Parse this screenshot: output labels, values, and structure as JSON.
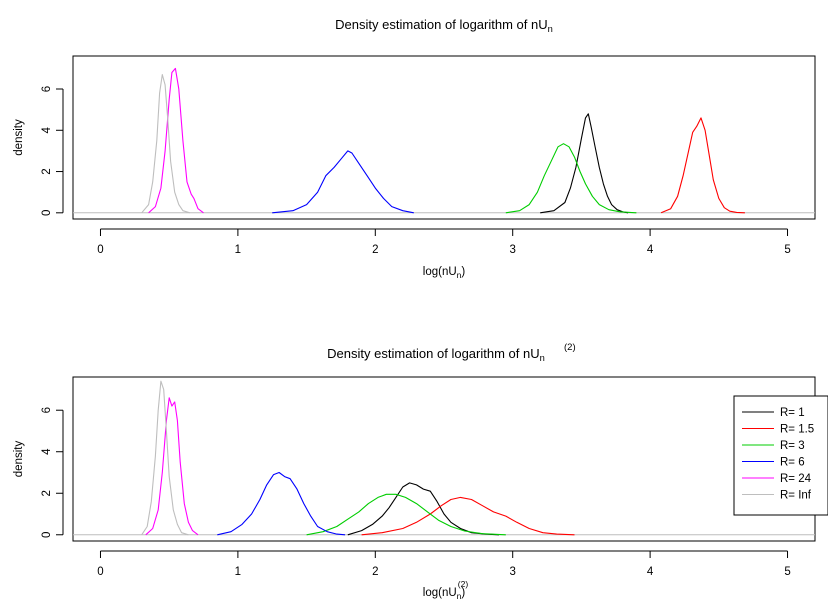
{
  "chart_data": [
    {
      "type": "line",
      "title": {
        "main": "Density estimation of logarithm of nU",
        "sub": "n",
        "sup": ""
      },
      "xlabel": {
        "pre": "log(nU",
        "sub": "n",
        "sup": "",
        "post": ")"
      },
      "ylabel": "density",
      "xlim": [
        -0.2,
        5.2
      ],
      "ylim": [
        -0.3,
        7.6
      ],
      "xticks": [
        "0",
        "1",
        "2",
        "3",
        "4",
        "5"
      ],
      "yticks": [
        "0",
        "2",
        "4",
        "6"
      ],
      "grid": false,
      "legend": false,
      "series": [
        {
          "label": "R= 1",
          "color": "#000000",
          "x": [
            3.2,
            3.3,
            3.38,
            3.42,
            3.46,
            3.5,
            3.53,
            3.55,
            3.57,
            3.6,
            3.63,
            3.66,
            3.69,
            3.72,
            3.76,
            3.8,
            3.84
          ],
          "y": [
            0.0,
            0.1,
            0.5,
            1.2,
            2.2,
            3.6,
            4.6,
            4.8,
            4.2,
            3.2,
            2.2,
            1.4,
            0.8,
            0.4,
            0.15,
            0.05,
            0.0
          ]
        },
        {
          "label": "R= 1.5",
          "color": "#ff0000",
          "x": [
            4.08,
            4.15,
            4.2,
            4.24,
            4.28,
            4.31,
            4.34,
            4.37,
            4.4,
            4.43,
            4.46,
            4.5,
            4.54,
            4.58,
            4.63,
            4.69
          ],
          "y": [
            0.0,
            0.2,
            0.8,
            1.8,
            3.0,
            3.9,
            4.2,
            4.6,
            4.0,
            2.8,
            1.6,
            0.7,
            0.25,
            0.08,
            0.02,
            0.0
          ]
        },
        {
          "label": "R= 3",
          "color": "#00cd00",
          "x": [
            2.95,
            3.05,
            3.12,
            3.18,
            3.23,
            3.28,
            3.33,
            3.37,
            3.41,
            3.45,
            3.49,
            3.53,
            3.58,
            3.63,
            3.7,
            3.78,
            3.9
          ],
          "y": [
            0.0,
            0.1,
            0.4,
            1.0,
            1.8,
            2.5,
            3.2,
            3.35,
            3.2,
            2.7,
            2.0,
            1.4,
            0.8,
            0.4,
            0.15,
            0.05,
            0.0
          ]
        },
        {
          "label": "R= 6",
          "color": "#0000ff",
          "x": [
            1.25,
            1.4,
            1.5,
            1.58,
            1.64,
            1.7,
            1.75,
            1.8,
            1.83,
            1.88,
            1.94,
            2.0,
            2.06,
            2.12,
            2.2,
            2.28
          ],
          "y": [
            0.0,
            0.1,
            0.4,
            1.0,
            1.8,
            2.2,
            2.6,
            3.0,
            2.9,
            2.4,
            1.8,
            1.2,
            0.7,
            0.3,
            0.1,
            0.0
          ]
        },
        {
          "label": "R= 24",
          "color": "#ff00ff",
          "x": [
            0.35,
            0.4,
            0.44,
            0.47,
            0.5,
            0.52,
            0.545,
            0.57,
            0.6,
            0.63,
            0.66,
            0.68,
            0.71,
            0.75
          ],
          "y": [
            0.0,
            0.3,
            1.2,
            3.0,
            5.5,
            6.8,
            7.0,
            6.0,
            3.5,
            1.5,
            0.9,
            0.7,
            0.2,
            0.0
          ]
        },
        {
          "label": "R= Inf",
          "color": "#bebebe",
          "x": [
            0.3,
            0.35,
            0.38,
            0.41,
            0.43,
            0.45,
            0.47,
            0.49,
            0.51,
            0.54,
            0.57,
            0.6,
            0.65
          ],
          "y": [
            0.0,
            0.4,
            1.5,
            3.5,
            5.8,
            6.7,
            6.2,
            4.5,
            2.5,
            1.0,
            0.4,
            0.1,
            0.0
          ]
        }
      ]
    },
    {
      "type": "line",
      "title": {
        "main": "Density estimation of logarithm of nU",
        "sub": "n",
        "sup": "(2)"
      },
      "xlabel": {
        "pre": "log(nU",
        "sub": "n",
        "sup": "(2)",
        "post": ")"
      },
      "ylabel": "density",
      "xlim": [
        -0.2,
        5.2
      ],
      "ylim": [
        -0.3,
        7.6
      ],
      "xticks": [
        "0",
        "1",
        "2",
        "3",
        "4",
        "5"
      ],
      "yticks": [
        "0",
        "2",
        "4",
        "6"
      ],
      "grid": false,
      "legend": true,
      "legend_position": "top-right",
      "series": [
        {
          "label": "R= 1",
          "color": "#000000",
          "x": [
            1.8,
            1.9,
            1.98,
            2.05,
            2.1,
            2.15,
            2.2,
            2.25,
            2.3,
            2.35,
            2.4,
            2.45,
            2.5,
            2.55,
            2.62,
            2.7,
            2.8,
            2.9
          ],
          "y": [
            0.0,
            0.2,
            0.5,
            0.9,
            1.3,
            1.8,
            2.3,
            2.5,
            2.4,
            2.2,
            2.1,
            1.6,
            1.0,
            0.6,
            0.3,
            0.1,
            0.03,
            0.0
          ]
        },
        {
          "label": "R= 1.5",
          "color": "#ff0000",
          "x": [
            1.9,
            2.05,
            2.2,
            2.3,
            2.4,
            2.48,
            2.55,
            2.62,
            2.7,
            2.78,
            2.86,
            2.95,
            3.03,
            3.12,
            3.22,
            3.32,
            3.45
          ],
          "y": [
            0.0,
            0.1,
            0.3,
            0.6,
            1.0,
            1.4,
            1.7,
            1.8,
            1.7,
            1.4,
            1.1,
            0.9,
            0.6,
            0.3,
            0.1,
            0.03,
            0.0
          ]
        },
        {
          "label": "R= 3",
          "color": "#00cd00",
          "x": [
            1.5,
            1.62,
            1.72,
            1.8,
            1.88,
            1.95,
            2.02,
            2.08,
            2.15,
            2.22,
            2.3,
            2.38,
            2.46,
            2.55,
            2.65,
            2.78,
            2.95
          ],
          "y": [
            0.0,
            0.15,
            0.4,
            0.75,
            1.1,
            1.5,
            1.8,
            1.95,
            1.95,
            1.8,
            1.5,
            1.1,
            0.7,
            0.4,
            0.18,
            0.05,
            0.0
          ]
        },
        {
          "label": "R= 6",
          "color": "#0000ff",
          "x": [
            0.85,
            0.95,
            1.03,
            1.1,
            1.16,
            1.21,
            1.26,
            1.3,
            1.34,
            1.38,
            1.43,
            1.48,
            1.53,
            1.58,
            1.65,
            1.72,
            1.78
          ],
          "y": [
            0.0,
            0.15,
            0.5,
            1.0,
            1.7,
            2.4,
            2.9,
            3.0,
            2.8,
            2.7,
            2.2,
            1.5,
            0.9,
            0.4,
            0.15,
            0.03,
            0.0
          ]
        },
        {
          "label": "R= 24",
          "color": "#ff00ff",
          "x": [
            0.33,
            0.38,
            0.42,
            0.45,
            0.48,
            0.5,
            0.52,
            0.54,
            0.56,
            0.58,
            0.61,
            0.64,
            0.67,
            0.71
          ],
          "y": [
            0.0,
            0.3,
            1.2,
            3.0,
            5.5,
            6.6,
            6.2,
            6.4,
            5.5,
            3.5,
            1.5,
            0.6,
            0.2,
            0.0
          ]
        },
        {
          "label": "R= Inf",
          "color": "#bebebe",
          "x": [
            0.3,
            0.34,
            0.37,
            0.4,
            0.42,
            0.44,
            0.46,
            0.48,
            0.5,
            0.53,
            0.56,
            0.59,
            0.64
          ],
          "y": [
            0.0,
            0.4,
            1.6,
            3.8,
            6.0,
            7.4,
            7.0,
            5.0,
            2.8,
            1.2,
            0.5,
            0.1,
            0.0
          ]
        }
      ]
    }
  ]
}
